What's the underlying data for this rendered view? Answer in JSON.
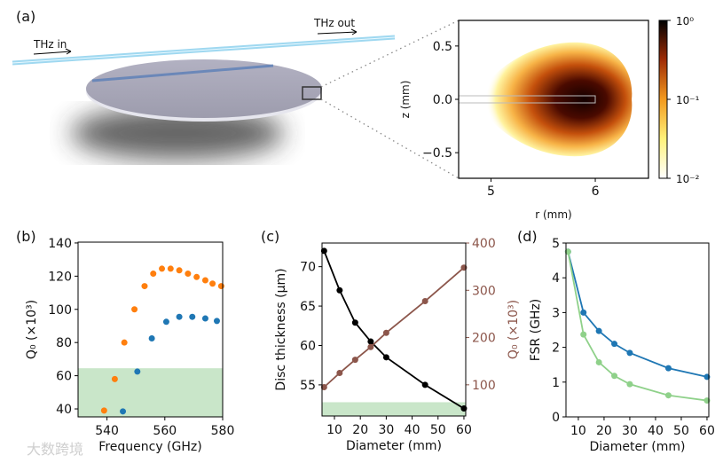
{
  "panel_labels": [
    "(a)",
    "(b)",
    "(c)",
    "(d)"
  ],
  "illustration": {
    "input_label": "THz in",
    "output_label": "THz out",
    "waveguide_color": "#9fd8f0",
    "disc_color": "#a9a9b9"
  },
  "watermark": "大数跨境",
  "colors": {
    "orange": "#ff7f0e",
    "blue": "#1f77b4",
    "brown": "#8c564b",
    "light_green": "#8fd18a",
    "band": "#c9e6c9"
  },
  "chart_data": [
    {
      "type": "heatmap",
      "xlabel": "r (mm)",
      "ylabel": "z (mm)",
      "xlim": [
        4.69,
        6.51
      ],
      "ylim": [
        -0.74,
        0.74
      ],
      "xticks": [
        {
          "v": 5,
          "label": "5"
        },
        {
          "v": 6,
          "label": "6"
        }
      ],
      "yticks": [
        {
          "v": 0.5,
          "label": "0.5"
        },
        {
          "v": 0,
          "label": "0.0"
        },
        {
          "v": -0.5,
          "label": "−0.5"
        }
      ],
      "field_peak": {
        "r": 5.8,
        "z": 0
      },
      "disc_edge_r": 6.0,
      "colorbar": {
        "scale": "log",
        "range": [
          0.01,
          1
        ],
        "ticks": [
          {
            "v": 0,
            "label": "10⁰"
          },
          {
            "v": -1,
            "label": "10⁻¹"
          },
          {
            "v": -2,
            "label": "10⁻²"
          }
        ]
      }
    },
    {
      "type": "scatter",
      "xlabel": "Frequency (GHz)",
      "ylabel": "Q₀ (×10³)",
      "xlim": [
        530,
        580
      ],
      "ylim": [
        35.2,
        140.5
      ],
      "xticks": [
        540,
        560,
        580
      ],
      "yticks": [
        40,
        60,
        80,
        100,
        120,
        140
      ],
      "band_max": 64.5,
      "series": [
        {
          "name": "orange",
          "color": "#ff7f0e",
          "points": [
            [
              539,
              39
            ],
            [
              542.7,
              58
            ],
            [
              546,
              80
            ],
            [
              549.5,
              100
            ],
            [
              553,
              114
            ],
            [
              556,
              121.5
            ],
            [
              559,
              124.5
            ],
            [
              562,
              124.5
            ],
            [
              565,
              123.5
            ],
            [
              568,
              121.5
            ],
            [
              571,
              119.5
            ],
            [
              574,
              117.5
            ],
            [
              576.5,
              115.5
            ],
            [
              579.5,
              114
            ]
          ]
        },
        {
          "name": "blue",
          "color": "#1f77b4",
          "points": [
            [
              545.5,
              38.5
            ],
            [
              550.5,
              62.5
            ],
            [
              555.5,
              82.5
            ],
            [
              560.5,
              92.5
            ],
            [
              565,
              95.5
            ],
            [
              569.5,
              95.5
            ],
            [
              574,
              94.5
            ],
            [
              578,
              93
            ]
          ]
        }
      ]
    },
    {
      "type": "line",
      "xlabel": "Diameter (mm)",
      "ylabel": "Disc thickness (μm)",
      "ylabel_right": "Q₀ (×10³)",
      "xlim": [
        5.2,
        60.7
      ],
      "ylim": [
        51.05,
        73
      ],
      "ylim_right": [
        34,
        400
      ],
      "xticks": [
        10,
        20,
        30,
        40,
        50,
        60
      ],
      "yticks": [
        55,
        60,
        65,
        70
      ],
      "yticks_right": [
        100,
        200,
        300,
        400
      ],
      "band_max": 52.8,
      "series": [
        {
          "name": "Disc thickness",
          "axis": "left",
          "color": "#000000",
          "points": [
            [
              6,
              72
            ],
            [
              12,
              67
            ],
            [
              18,
              62.9
            ],
            [
              24,
              60.5
            ],
            [
              30,
              58.5
            ],
            [
              45,
              55
            ],
            [
              60,
              52
            ]
          ]
        },
        {
          "name": "Q0",
          "axis": "right",
          "color": "#8c564b",
          "points": [
            [
              6,
              95
            ],
            [
              12,
              125
            ],
            [
              18,
              153
            ],
            [
              24,
              180
            ],
            [
              30,
              210
            ],
            [
              45,
              277
            ],
            [
              60,
              348
            ]
          ]
        }
      ]
    },
    {
      "type": "line",
      "xlabel": "Diameter (mm)",
      "ylabel": "FSR (GHz)",
      "xlim": [
        5.2,
        60.7
      ],
      "ylim": [
        0,
        5
      ],
      "xticks": [
        10,
        20,
        30,
        40,
        50,
        60
      ],
      "yticks": [
        0,
        1,
        2,
        3,
        4,
        5
      ],
      "series": [
        {
          "name": "blue",
          "color": "#1f77b4",
          "points": [
            [
              6,
              4.75
            ],
            [
              12,
              3.0
            ],
            [
              18,
              2.47
            ],
            [
              24,
              2.1
            ],
            [
              30,
              1.84
            ],
            [
              45,
              1.4
            ],
            [
              60,
              1.15
            ]
          ]
        },
        {
          "name": "green",
          "color": "#8fd18a",
          "points": [
            [
              6,
              4.75
            ],
            [
              12,
              2.37
            ],
            [
              18,
              1.57
            ],
            [
              24,
              1.18
            ],
            [
              30,
              0.94
            ],
            [
              45,
              0.62
            ],
            [
              60,
              0.47
            ]
          ]
        }
      ]
    }
  ]
}
